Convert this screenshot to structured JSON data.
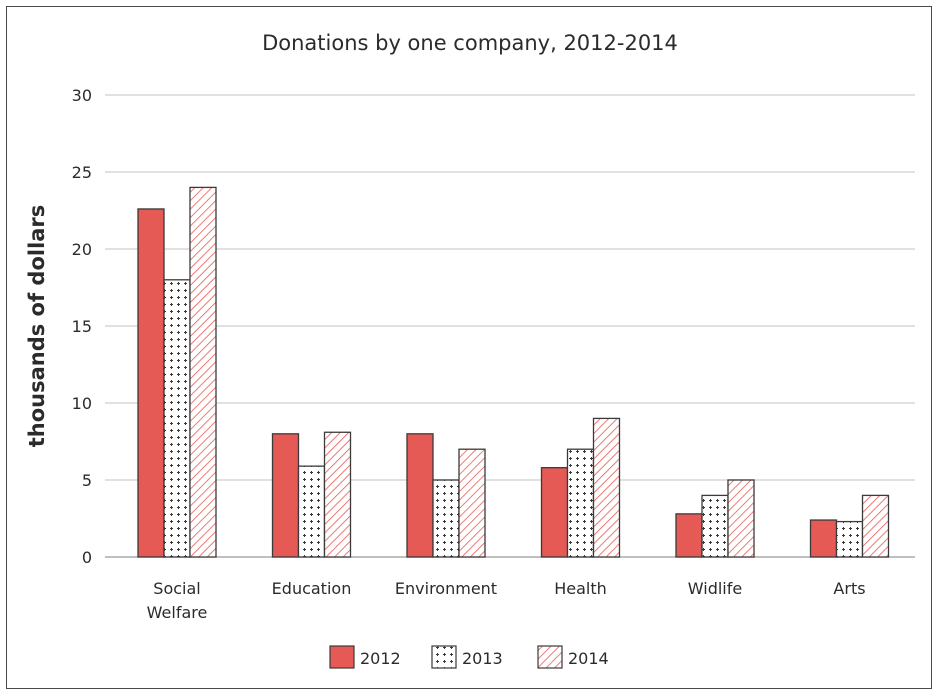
{
  "chart_data": {
    "type": "bar",
    "title": "Donations by one company, 2012-2014",
    "ylabel": "thousands of dollars",
    "xlabel": "",
    "ylim": [
      0,
      30
    ],
    "yticks": [
      0,
      5,
      10,
      15,
      20,
      25,
      30
    ],
    "grid": true,
    "legend_position": "bottom",
    "categories": [
      [
        "Social",
        "Welfare"
      ],
      [
        "Education"
      ],
      [
        "Environment"
      ],
      [
        "Health"
      ],
      [
        "Widlife"
      ],
      [
        "Arts"
      ]
    ],
    "series": [
      {
        "name": "2012",
        "pattern": "solid",
        "color": "#e55a55",
        "values": [
          22.6,
          8,
          8,
          5.8,
          2.8,
          2.4
        ]
      },
      {
        "name": "2013",
        "pattern": "dots",
        "color": "#ffffff",
        "values": [
          18,
          5.9,
          5,
          7,
          4,
          2.3
        ]
      },
      {
        "name": "2014",
        "pattern": "hatch",
        "color": "#e55a55",
        "values": [
          24,
          8.1,
          7,
          9,
          5,
          4
        ]
      }
    ],
    "colors": {
      "stroke": "#3a3a3a",
      "grid": "#cfcfcf"
    }
  }
}
